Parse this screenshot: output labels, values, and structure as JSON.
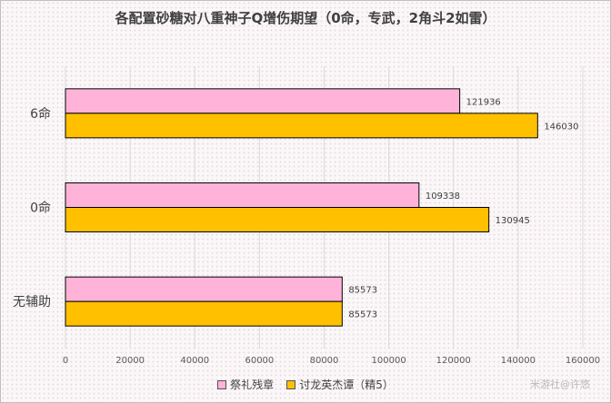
{
  "watermark": "米游社@许悠",
  "chart_data": {
    "type": "bar",
    "orientation": "horizontal",
    "title": "各配置砂糖对八重神子Q增伤期望（0命，专武，2角斗2如雷）",
    "categories": [
      "6命",
      "0命",
      "无辅助"
    ],
    "series": [
      {
        "name": "祭礼残章",
        "color": "#ffb3d9",
        "values": [
          121936,
          109338,
          85573
        ]
      },
      {
        "name": "讨龙英杰谭（精5）",
        "color": "#ffc000",
        "values": [
          146030,
          130945,
          85573
        ]
      }
    ],
    "xlim": [
      0,
      160000
    ],
    "xticks": [
      0,
      20000,
      40000,
      60000,
      80000,
      100000,
      120000,
      140000,
      160000
    ],
    "legend_position": "bottom",
    "grid": true
  }
}
